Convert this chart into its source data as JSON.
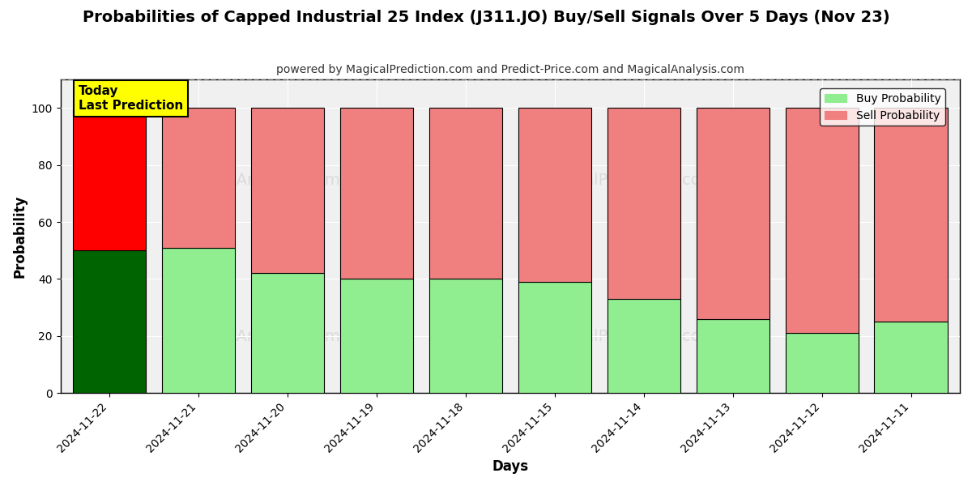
{
  "title": "Probabilities of Capped Industrial 25 Index (J311.JO) Buy/Sell Signals Over 5 Days (Nov 23)",
  "subtitle": "powered by MagicalPrediction.com and Predict-Price.com and MagicalAnalysis.com",
  "xlabel": "Days",
  "ylabel": "Probability",
  "categories": [
    "2024-11-22",
    "2024-11-21",
    "2024-11-20",
    "2024-11-19",
    "2024-11-18",
    "2024-11-15",
    "2024-11-14",
    "2024-11-13",
    "2024-11-12",
    "2024-11-11"
  ],
  "buy_values": [
    50,
    51,
    42,
    40,
    40,
    39,
    33,
    26,
    21,
    25
  ],
  "sell_values": [
    50,
    49,
    58,
    60,
    60,
    61,
    67,
    74,
    79,
    75
  ],
  "today_buy_color": "#006400",
  "today_sell_color": "#ff0000",
  "buy_color": "#90EE90",
  "sell_color": "#F08080",
  "bar_edge_color": "#000000",
  "today_label_bg": "#ffff00",
  "today_label_text": "Today\nLast Prediction",
  "legend_buy": "Buy Probability",
  "legend_sell": "Sell Probability",
  "ylim": [
    0,
    110
  ],
  "yticks": [
    0,
    20,
    40,
    60,
    80,
    100
  ],
  "dashed_line_y": 110,
  "background_color": "#ffffff",
  "plot_bg_color": "#f0f0f0",
  "grid_color": "#ffffff",
  "watermark_color": "#c0c0c0"
}
